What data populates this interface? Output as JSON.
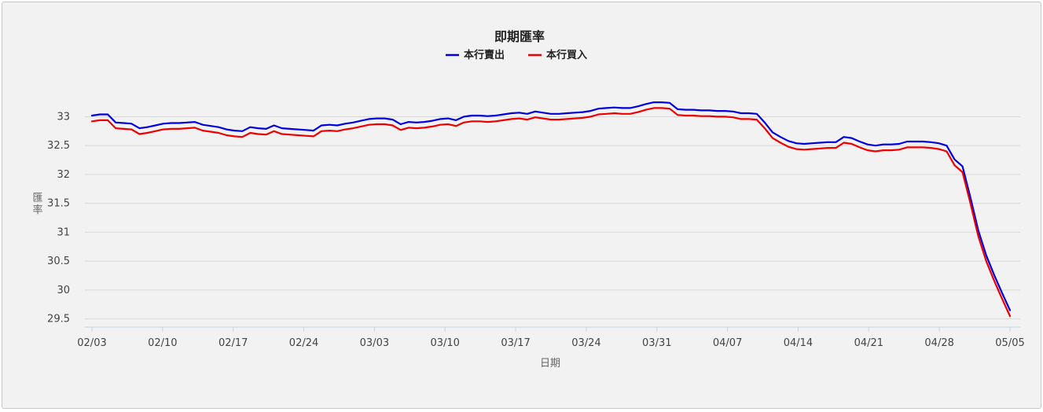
{
  "chart_data": {
    "type": "line",
    "title": "即期匯率",
    "xlabel": "日期",
    "ylabel": "匯率",
    "x_tick_labels": [
      "02/03",
      "02/10",
      "02/17",
      "02/24",
      "03/03",
      "03/10",
      "03/17",
      "03/24",
      "03/31",
      "04/07",
      "04/14",
      "04/21",
      "04/28",
      "05/05"
    ],
    "y_ticks": [
      29.5,
      30,
      30.5,
      31,
      31.5,
      32,
      32.5,
      33
    ],
    "ylim": [
      29.4,
      33.7
    ],
    "x_day_range": [
      0,
      91
    ],
    "grid": true,
    "legend_position": "top-center",
    "series": [
      {
        "name": "本行賣出",
        "color": "#0000dd",
        "points": [
          [
            0,
            33.02
          ],
          [
            1,
            33.04
          ],
          [
            2,
            33.04
          ],
          [
            3,
            32.9
          ],
          [
            4,
            32.89
          ],
          [
            5,
            32.88
          ],
          [
            6,
            32.8
          ],
          [
            7,
            32.82
          ],
          [
            8,
            32.85
          ],
          [
            9,
            32.88
          ],
          [
            10,
            32.89
          ],
          [
            11,
            32.89
          ],
          [
            12,
            32.9
          ],
          [
            13,
            32.91
          ],
          [
            14,
            32.86
          ],
          [
            15,
            32.84
          ],
          [
            16,
            32.82
          ],
          [
            17,
            32.78
          ],
          [
            18,
            32.76
          ],
          [
            19,
            32.75
          ],
          [
            20,
            32.82
          ],
          [
            21,
            32.8
          ],
          [
            22,
            32.79
          ],
          [
            23,
            32.85
          ],
          [
            24,
            32.8
          ],
          [
            25,
            32.79
          ],
          [
            26,
            32.78
          ],
          [
            27,
            32.77
          ],
          [
            28,
            32.76
          ],
          [
            29,
            32.85
          ],
          [
            30,
            32.86
          ],
          [
            31,
            32.85
          ],
          [
            32,
            32.88
          ],
          [
            33,
            32.9
          ],
          [
            34,
            32.93
          ],
          [
            35,
            32.96
          ],
          [
            36,
            32.97
          ],
          [
            37,
            32.97
          ],
          [
            38,
            32.95
          ],
          [
            39,
            32.87
          ],
          [
            40,
            32.91
          ],
          [
            41,
            32.9
          ],
          [
            42,
            32.91
          ],
          [
            43,
            32.93
          ],
          [
            44,
            32.96
          ],
          [
            45,
            32.97
          ],
          [
            46,
            32.94
          ],
          [
            47,
            33.0
          ],
          [
            48,
            33.02
          ],
          [
            49,
            33.02
          ],
          [
            50,
            33.01
          ],
          [
            51,
            33.02
          ],
          [
            52,
            33.04
          ],
          [
            53,
            33.06
          ],
          [
            54,
            33.07
          ],
          [
            55,
            33.05
          ],
          [
            56,
            33.09
          ],
          [
            57,
            33.07
          ],
          [
            58,
            33.05
          ],
          [
            59,
            33.05
          ],
          [
            60,
            33.06
          ],
          [
            61,
            33.07
          ],
          [
            62,
            33.08
          ],
          [
            63,
            33.1
          ],
          [
            64,
            33.14
          ],
          [
            65,
            33.15
          ],
          [
            66,
            33.16
          ],
          [
            67,
            33.15
          ],
          [
            68,
            33.15
          ],
          [
            69,
            33.18
          ],
          [
            70,
            33.22
          ],
          [
            71,
            33.25
          ],
          [
            72,
            33.25
          ],
          [
            73,
            33.24
          ],
          [
            74,
            33.13
          ],
          [
            75,
            33.12
          ],
          [
            76,
            33.12
          ],
          [
            77,
            33.11
          ],
          [
            78,
            33.11
          ],
          [
            79,
            33.1
          ],
          [
            80,
            33.1
          ],
          [
            81,
            33.09
          ],
          [
            82,
            33.06
          ],
          [
            83,
            33.06
          ],
          [
            84,
            33.05
          ],
          [
            85,
            32.9
          ],
          [
            86,
            32.73
          ],
          [
            87,
            32.65
          ],
          [
            88,
            32.58
          ],
          [
            89,
            32.54
          ],
          [
            90,
            32.53
          ],
          [
            91,
            32.54
          ],
          [
            92,
            32.55
          ],
          [
            93,
            32.56
          ],
          [
            94,
            32.56
          ],
          [
            95,
            32.65
          ],
          [
            96,
            32.63
          ],
          [
            97,
            32.57
          ],
          [
            98,
            32.52
          ],
          [
            99,
            32.5
          ],
          [
            100,
            32.52
          ],
          [
            101,
            32.52
          ],
          [
            102,
            32.53
          ],
          [
            103,
            32.57
          ],
          [
            104,
            32.57
          ],
          [
            105,
            32.57
          ],
          [
            106,
            32.56
          ],
          [
            107,
            32.54
          ],
          [
            108,
            32.5
          ],
          [
            109,
            32.26
          ],
          [
            110,
            32.14
          ],
          [
            111,
            31.6
          ],
          [
            112,
            31.03
          ],
          [
            113,
            30.6
          ],
          [
            114,
            30.26
          ],
          [
            115,
            29.95
          ],
          [
            116,
            29.65
          ]
        ]
      },
      {
        "name": "本行買入",
        "color": "#ee0000",
        "points": [
          [
            0,
            32.92
          ],
          [
            1,
            32.94
          ],
          [
            2,
            32.94
          ],
          [
            3,
            32.8
          ],
          [
            4,
            32.79
          ],
          [
            5,
            32.78
          ],
          [
            6,
            32.7
          ],
          [
            7,
            32.72
          ],
          [
            8,
            32.75
          ],
          [
            9,
            32.78
          ],
          [
            10,
            32.79
          ],
          [
            11,
            32.79
          ],
          [
            12,
            32.8
          ],
          [
            13,
            32.81
          ],
          [
            14,
            32.76
          ],
          [
            15,
            32.74
          ],
          [
            16,
            32.72
          ],
          [
            17,
            32.68
          ],
          [
            18,
            32.66
          ],
          [
            19,
            32.65
          ],
          [
            20,
            32.72
          ],
          [
            21,
            32.7
          ],
          [
            22,
            32.69
          ],
          [
            23,
            32.75
          ],
          [
            24,
            32.7
          ],
          [
            25,
            32.69
          ],
          [
            26,
            32.68
          ],
          [
            27,
            32.67
          ],
          [
            28,
            32.66
          ],
          [
            29,
            32.75
          ],
          [
            30,
            32.76
          ],
          [
            31,
            32.75
          ],
          [
            32,
            32.78
          ],
          [
            33,
            32.8
          ],
          [
            34,
            32.83
          ],
          [
            35,
            32.86
          ],
          [
            36,
            32.87
          ],
          [
            37,
            32.87
          ],
          [
            38,
            32.85
          ],
          [
            39,
            32.77
          ],
          [
            40,
            32.81
          ],
          [
            41,
            32.8
          ],
          [
            42,
            32.81
          ],
          [
            43,
            32.83
          ],
          [
            44,
            32.86
          ],
          [
            45,
            32.87
          ],
          [
            46,
            32.84
          ],
          [
            47,
            32.9
          ],
          [
            48,
            32.92
          ],
          [
            49,
            32.92
          ],
          [
            50,
            32.91
          ],
          [
            51,
            32.92
          ],
          [
            52,
            32.94
          ],
          [
            53,
            32.96
          ],
          [
            54,
            32.97
          ],
          [
            55,
            32.95
          ],
          [
            56,
            32.99
          ],
          [
            57,
            32.97
          ],
          [
            58,
            32.95
          ],
          [
            59,
            32.95
          ],
          [
            60,
            32.96
          ],
          [
            61,
            32.97
          ],
          [
            62,
            32.98
          ],
          [
            63,
            33.0
          ],
          [
            64,
            33.04
          ],
          [
            65,
            33.05
          ],
          [
            66,
            33.06
          ],
          [
            67,
            33.05
          ],
          [
            68,
            33.05
          ],
          [
            69,
            33.08
          ],
          [
            70,
            33.12
          ],
          [
            71,
            33.15
          ],
          [
            72,
            33.15
          ],
          [
            73,
            33.14
          ],
          [
            74,
            33.03
          ],
          [
            75,
            33.02
          ],
          [
            76,
            33.02
          ],
          [
            77,
            33.01
          ],
          [
            78,
            33.01
          ],
          [
            79,
            33.0
          ],
          [
            80,
            33.0
          ],
          [
            81,
            32.99
          ],
          [
            82,
            32.96
          ],
          [
            83,
            32.96
          ],
          [
            84,
            32.95
          ],
          [
            85,
            32.8
          ],
          [
            86,
            32.63
          ],
          [
            87,
            32.55
          ],
          [
            88,
            32.48
          ],
          [
            89,
            32.44
          ],
          [
            90,
            32.43
          ],
          [
            91,
            32.44
          ],
          [
            92,
            32.45
          ],
          [
            93,
            32.46
          ],
          [
            94,
            32.46
          ],
          [
            95,
            32.55
          ],
          [
            96,
            32.53
          ],
          [
            97,
            32.47
          ],
          [
            98,
            32.42
          ],
          [
            99,
            32.4
          ],
          [
            100,
            32.42
          ],
          [
            101,
            32.42
          ],
          [
            102,
            32.43
          ],
          [
            103,
            32.47
          ],
          [
            104,
            32.47
          ],
          [
            105,
            32.47
          ],
          [
            106,
            32.46
          ],
          [
            107,
            32.44
          ],
          [
            108,
            32.4
          ],
          [
            109,
            32.16
          ],
          [
            110,
            32.04
          ],
          [
            111,
            31.5
          ],
          [
            112,
            30.93
          ],
          [
            113,
            30.5
          ],
          [
            114,
            30.16
          ],
          [
            115,
            29.85
          ],
          [
            116,
            29.55
          ]
        ]
      }
    ]
  }
}
